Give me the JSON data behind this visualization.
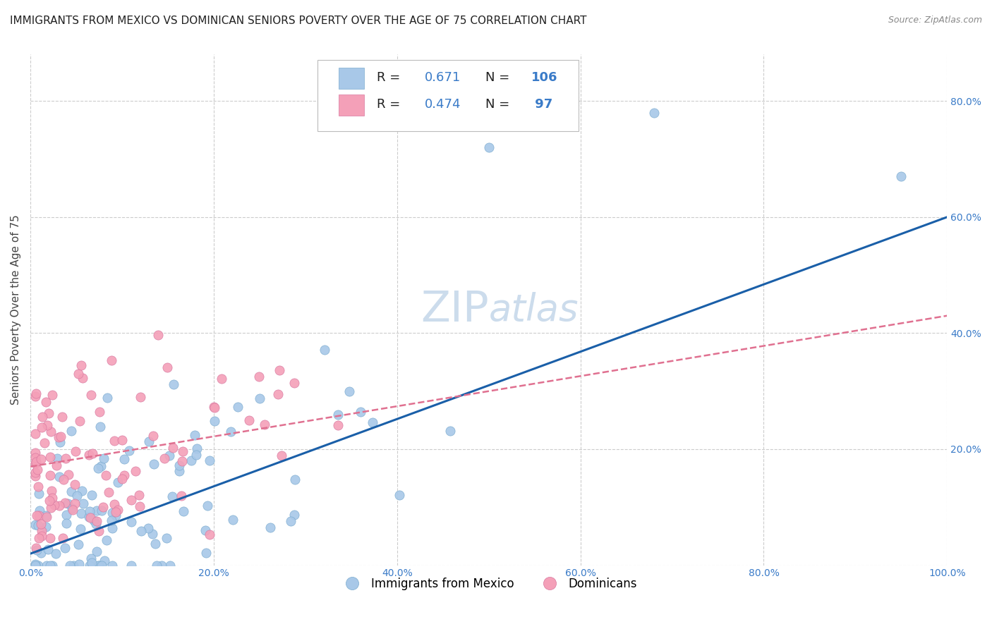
{
  "title": "IMMIGRANTS FROM MEXICO VS DOMINICAN SENIORS POVERTY OVER THE AGE OF 75 CORRELATION CHART",
  "source": "Source: ZipAtlas.com",
  "ylabel": "Seniors Poverty Over the Age of 75",
  "blue_R": 0.671,
  "blue_N": 106,
  "pink_R": 0.474,
  "pink_N": 97,
  "blue_color": "#a8c8e8",
  "pink_color": "#f4a0b8",
  "blue_line_color": "#1a5fa8",
  "pink_line_color": "#e07090",
  "watermark_color": "#ccdcec",
  "background_color": "#ffffff",
  "grid_color": "#cccccc",
  "title_fontsize": 11,
  "ylabel_fontsize": 11,
  "tick_fontsize": 10,
  "legend_fontsize": 13,
  "watermark_fontsize": 40,
  "source_fontsize": 9,
  "blue_line_intercept": 0.02,
  "blue_line_slope": 0.58,
  "pink_line_intercept": 0.17,
  "pink_line_slope": 0.26,
  "xlim": [
    0.0,
    1.0
  ],
  "ylim": [
    0.0,
    0.88
  ],
  "xticks": [
    0.0,
    0.2,
    0.4,
    0.6,
    0.8,
    1.0
  ],
  "yticks": [
    0.0,
    0.2,
    0.4,
    0.6,
    0.8
  ],
  "xtick_labels": [
    "0.0%",
    "20.0%",
    "40.0%",
    "60.0%",
    "80.0%",
    "100.0%"
  ],
  "ytick_labels": [
    "",
    "20.0%",
    "40.0%",
    "60.0%",
    "80.0%"
  ],
  "legend_label_1": "Immigrants from Mexico",
  "legend_label_2": "Dominicans"
}
